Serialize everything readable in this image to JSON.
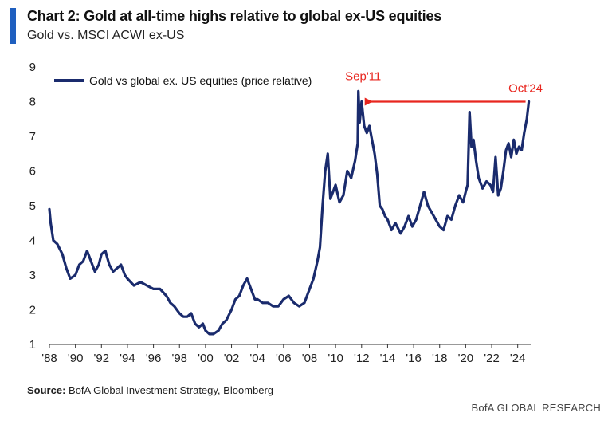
{
  "header": {
    "title": "Chart 2: Gold at all-time highs relative to global ex-US equities",
    "subtitle": "Gold vs. MSCI ACWI ex-US"
  },
  "footer": {
    "source_label": "Source:",
    "source_text": " BofA Global Investment Strategy, Bloomberg",
    "brand": "BofA GLOBAL RESEARCH"
  },
  "colors": {
    "accent": "#1f5fbf",
    "series": "#1a2b6d",
    "annotation": "#e8261f"
  },
  "chart_data": {
    "type": "line",
    "title": "Chart 2: Gold at all-time highs relative to global ex-US equities",
    "subtitle": "Gold vs. MSCI ACWI ex-US",
    "xlabel": "",
    "ylabel": "",
    "xlim": [
      1988,
      2025
    ],
    "ylim": [
      1,
      9
    ],
    "yticks": [
      1,
      2,
      3,
      4,
      5,
      6,
      7,
      8,
      9
    ],
    "xticks": [
      "'88",
      "'90",
      "'92",
      "'94",
      "'96",
      "'98",
      "'00",
      "'02",
      "'04",
      "'06",
      "'08",
      "'10",
      "'12",
      "'14",
      "'16",
      "'18",
      "'20",
      "'22",
      "'24"
    ],
    "xtick_values": [
      1988,
      1990,
      1992,
      1994,
      1996,
      1998,
      2000,
      2002,
      2004,
      2006,
      2008,
      2010,
      2012,
      2014,
      2016,
      2018,
      2020,
      2022,
      2024
    ],
    "grid": false,
    "legend": "top-left",
    "series": [
      {
        "name": "Gold vs global ex. US equities (price relative)",
        "x": [
          1988.0,
          1988.1,
          1988.3,
          1988.6,
          1989.0,
          1989.3,
          1989.6,
          1990.0,
          1990.3,
          1990.6,
          1990.9,
          1991.2,
          1991.5,
          1991.8,
          1992.0,
          1992.3,
          1992.6,
          1992.9,
          1993.2,
          1993.5,
          1993.8,
          1994.0,
          1994.5,
          1995.0,
          1995.5,
          1996.0,
          1996.5,
          1997.0,
          1997.3,
          1997.6,
          1998.0,
          1998.3,
          1998.6,
          1998.9,
          1999.2,
          1999.5,
          1999.8,
          2000.0,
          2000.3,
          2000.6,
          2001.0,
          2001.3,
          2001.6,
          2002.0,
          2002.3,
          2002.6,
          2002.9,
          2003.2,
          2003.5,
          2003.8,
          2004.0,
          2004.4,
          2004.8,
          2005.2,
          2005.6,
          2006.0,
          2006.4,
          2006.8,
          2007.2,
          2007.6,
          2008.0,
          2008.3,
          2008.6,
          2008.8,
          2009.0,
          2009.2,
          2009.4,
          2009.6,
          2009.8,
          2010.0,
          2010.3,
          2010.6,
          2010.9,
          2011.2,
          2011.5,
          2011.7,
          2011.75,
          2011.85,
          2012.0,
          2012.2,
          2012.4,
          2012.6,
          2012.8,
          2013.0,
          2013.2,
          2013.4,
          2013.6,
          2013.8,
          2014.0,
          2014.3,
          2014.6,
          2015.0,
          2015.3,
          2015.6,
          2015.9,
          2016.2,
          2016.5,
          2016.8,
          2017.1,
          2017.4,
          2017.7,
          2018.0,
          2018.3,
          2018.6,
          2018.9,
          2019.2,
          2019.5,
          2019.8,
          2020.0,
          2020.15,
          2020.3,
          2020.45,
          2020.6,
          2020.8,
          2021.0,
          2021.3,
          2021.6,
          2021.9,
          2022.1,
          2022.3,
          2022.5,
          2022.7,
          2022.9,
          2023.1,
          2023.3,
          2023.5,
          2023.7,
          2023.9,
          2024.1,
          2024.3,
          2024.5,
          2024.7,
          2024.85
        ],
        "y": [
          4.9,
          4.5,
          4.0,
          3.9,
          3.6,
          3.2,
          2.9,
          3.0,
          3.3,
          3.4,
          3.7,
          3.4,
          3.1,
          3.3,
          3.6,
          3.7,
          3.3,
          3.1,
          3.2,
          3.3,
          3.0,
          2.9,
          2.7,
          2.8,
          2.7,
          2.6,
          2.6,
          2.4,
          2.2,
          2.1,
          1.9,
          1.8,
          1.8,
          1.9,
          1.6,
          1.5,
          1.6,
          1.4,
          1.3,
          1.3,
          1.4,
          1.6,
          1.7,
          2.0,
          2.3,
          2.4,
          2.7,
          2.9,
          2.6,
          2.3,
          2.3,
          2.2,
          2.2,
          2.1,
          2.1,
          2.3,
          2.4,
          2.2,
          2.1,
          2.2,
          2.6,
          2.9,
          3.4,
          3.8,
          5.0,
          6.0,
          6.5,
          5.2,
          5.4,
          5.6,
          5.1,
          5.3,
          6.0,
          5.8,
          6.3,
          6.8,
          8.3,
          7.4,
          8.0,
          7.3,
          7.1,
          7.3,
          6.9,
          6.5,
          5.9,
          5.0,
          4.9,
          4.7,
          4.6,
          4.3,
          4.5,
          4.2,
          4.4,
          4.7,
          4.4,
          4.6,
          5.0,
          5.4,
          5.0,
          4.8,
          4.6,
          4.4,
          4.3,
          4.7,
          4.6,
          5.0,
          5.3,
          5.1,
          5.4,
          5.6,
          7.7,
          6.7,
          6.9,
          6.3,
          5.8,
          5.5,
          5.7,
          5.6,
          5.4,
          6.4,
          5.3,
          5.5,
          6.0,
          6.6,
          6.8,
          6.4,
          6.9,
          6.5,
          6.7,
          6.6,
          7.1,
          7.5,
          8.0
        ]
      }
    ],
    "annotations": [
      {
        "label": "Sep'11",
        "x": 2011.75,
        "y": 8.3
      },
      {
        "label": "Oct'24",
        "x": 2024.85,
        "y": 8.0
      }
    ]
  }
}
